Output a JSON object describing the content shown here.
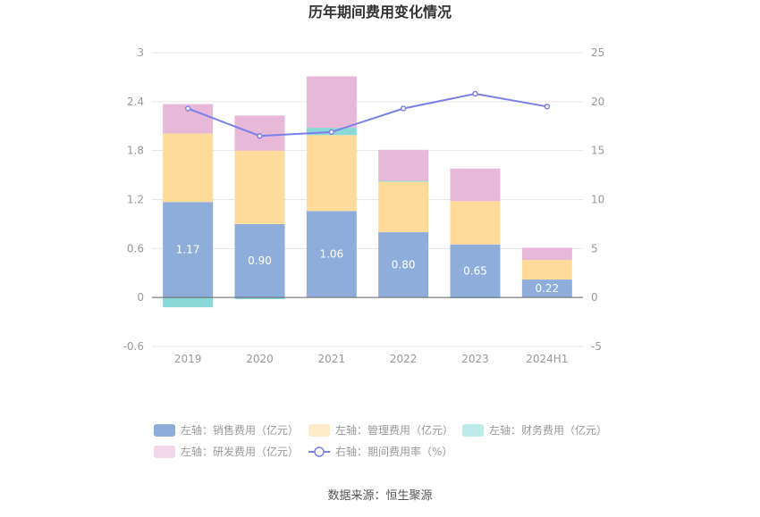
{
  "chart_data": {
    "type": "bar",
    "title": "历年期间费用变化情况",
    "categories": [
      "2019",
      "2020",
      "2021",
      "2022",
      "2023",
      "2024H1"
    ],
    "left_axis": {
      "min": -0.6,
      "max": 3,
      "ticks": [
        "-0.6",
        "0",
        "0.6",
        "1.2",
        "1.8",
        "2.4",
        "3"
      ]
    },
    "right_axis": {
      "min": -5,
      "max": 25,
      "ticks": [
        "-5",
        "0",
        "5",
        "10",
        "15",
        "20",
        "25"
      ]
    },
    "grid": true,
    "legend_position": "bottom",
    "series": [
      {
        "name": "左轴：销售费用（亿元）",
        "kind": "bar",
        "color": "#8eadda",
        "values": [
          1.17,
          0.9,
          1.06,
          0.8,
          0.65,
          0.22
        ],
        "labels": [
          "1.17",
          "0.90",
          "1.06",
          "0.80",
          "0.65",
          "0.22"
        ]
      },
      {
        "name": "左轴：管理费用（亿元）",
        "kind": "bar",
        "color": "#fedb9b",
        "values": [
          0.84,
          0.9,
          0.93,
          0.62,
          0.53,
          0.24
        ]
      },
      {
        "name": "左轴：财务费用（亿元）",
        "kind": "bar",
        "color": "#8ad8d8",
        "values": [
          -0.12,
          -0.02,
          0.09,
          0.01,
          -0.01,
          0.0
        ]
      },
      {
        "name": "左轴：研发费用（亿元）",
        "kind": "bar",
        "color": "#e8b8d9",
        "values": [
          0.36,
          0.43,
          0.63,
          0.38,
          0.4,
          0.15
        ]
      },
      {
        "name": "右轴：期间费用率（%）",
        "kind": "line",
        "color": "#7b7fe8",
        "values": [
          19.3,
          16.5,
          16.9,
          19.3,
          20.8,
          19.5
        ]
      }
    ],
    "source": "数据来源：恒生聚源"
  }
}
